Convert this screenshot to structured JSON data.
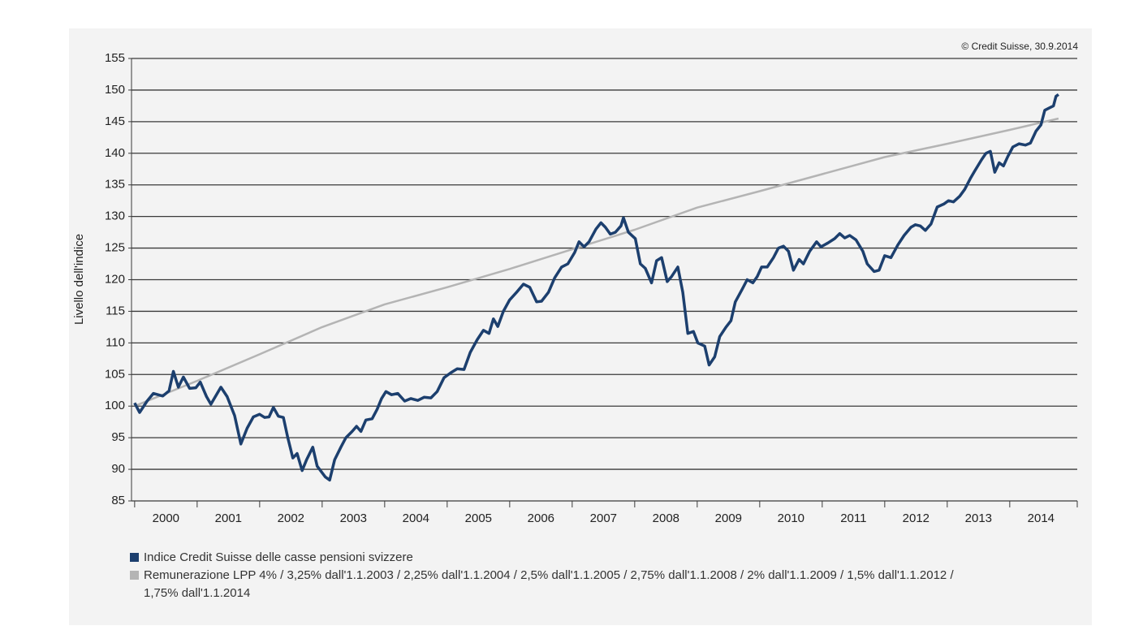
{
  "chart_data": {
    "type": "line",
    "source": "© Credit Suisse, 30.9.2014",
    "y_label": "Livello dell'indice",
    "xlim": [
      1999.95,
      2015.08
    ],
    "xticks": [
      2000,
      2001,
      2002,
      2003,
      2004,
      2005,
      2006,
      2007,
      2008,
      2009,
      2010,
      2011,
      2012,
      2013,
      2014
    ],
    "ylim": [
      85,
      155
    ],
    "yticks": [
      85,
      90,
      95,
      100,
      105,
      110,
      115,
      120,
      125,
      130,
      135,
      140,
      145,
      150,
      155
    ],
    "grid": true,
    "series": [
      {
        "name": "Indice Credit Suisse delle casse pensioni svizzere",
        "color": "#1c3f6e",
        "x": [
          2000.0,
          2000.08,
          2000.2,
          2000.3,
          2000.45,
          2000.55,
          2000.62,
          2000.7,
          2000.78,
          2000.88,
          2000.98,
          2001.05,
          2001.15,
          2001.22,
          2001.38,
          2001.48,
          2001.6,
          2001.7,
          2001.8,
          2001.9,
          2002.0,
          2002.08,
          2002.15,
          2002.22,
          2002.3,
          2002.38,
          2002.45,
          2002.53,
          2002.6,
          2002.68,
          2002.75,
          2002.85,
          2002.92,
          2003.05,
          2003.12,
          2003.2,
          2003.3,
          2003.38,
          2003.48,
          2003.55,
          2003.62,
          2003.7,
          2003.8,
          2003.88,
          2003.95,
          2004.02,
          2004.11,
          2004.21,
          2004.32,
          2004.42,
          2004.53,
          2004.63,
          2004.74,
          2004.84,
          2004.95,
          2005.06,
          2005.16,
          2005.27,
          2005.37,
          2005.48,
          2005.58,
          2005.67,
          2005.74,
          2005.81,
          2005.9,
          2006.0,
          2006.11,
          2006.22,
          2006.32,
          2006.43,
          2006.51,
          2006.62,
          2006.72,
          2006.83,
          2006.93,
          2007.04,
          2007.11,
          2007.19,
          2007.27,
          2007.38,
          2007.46,
          2007.53,
          2007.61,
          2007.69,
          2007.78,
          2007.82,
          2007.9,
          2008.01,
          2008.09,
          2008.17,
          2008.27,
          2008.35,
          2008.43,
          2008.52,
          2008.59,
          2008.69,
          2008.77,
          2008.85,
          2008.94,
          2009.01,
          2009.12,
          2009.19,
          2009.28,
          2009.36,
          2009.46,
          2009.54,
          2009.61,
          2009.72,
          2009.8,
          2009.89,
          2009.96,
          2010.03,
          2010.12,
          2010.22,
          2010.3,
          2010.38,
          2010.46,
          2010.54,
          2010.63,
          2010.7,
          2010.8,
          2010.91,
          2010.98,
          2011.09,
          2011.2,
          2011.28,
          2011.36,
          2011.44,
          2011.54,
          2011.65,
          2011.72,
          2011.83,
          2011.91,
          2012.0,
          2012.1,
          2012.21,
          2012.31,
          2012.42,
          2012.49,
          2012.57,
          2012.65,
          2012.74,
          2012.84,
          2012.95,
          2013.02,
          2013.1,
          2013.2,
          2013.28,
          2013.37,
          2013.44,
          2013.55,
          2013.62,
          2013.69,
          2013.76,
          2013.83,
          2013.9,
          2013.97,
          2014.05,
          2014.15,
          2014.25,
          2014.33,
          2014.42,
          2014.5,
          2014.56,
          2014.64,
          2014.7,
          2014.74,
          2014.78
        ],
        "values": [
          100.5,
          99,
          100.8,
          102,
          101.6,
          102.4,
          105.5,
          103,
          104.6,
          102.8,
          102.9,
          103.8,
          101.5,
          100.3,
          103,
          101.5,
          98.5,
          94,
          96.5,
          98.3,
          98.7,
          98.2,
          98.3,
          99.8,
          98.4,
          98.2,
          95,
          91.8,
          92.5,
          89.8,
          91.5,
          93.5,
          90.5,
          88.8,
          88.3,
          91.5,
          93.5,
          95,
          96,
          96.8,
          96,
          97.8,
          98,
          99.5,
          101.2,
          102.3,
          101.8,
          102,
          100.8,
          101.2,
          100.9,
          101.4,
          101.3,
          102.3,
          104.5,
          105.3,
          105.9,
          105.8,
          108.5,
          110.5,
          112,
          111.5,
          113.8,
          112.6,
          115,
          116.8,
          118,
          119.3,
          118.8,
          116.5,
          116.6,
          118,
          120.3,
          122,
          122.5,
          124.3,
          126,
          125.2,
          126,
          128,
          129,
          128.3,
          127.2,
          127.5,
          128.5,
          129.8,
          127.5,
          126.5,
          122.5,
          121.8,
          119.5,
          123,
          123.5,
          119.7,
          120.5,
          122,
          118,
          111.5,
          111.8,
          110,
          109.5,
          106.5,
          107.8,
          111,
          112.5,
          113.5,
          116.5,
          118.5,
          120,
          119.5,
          120.5,
          122,
          122,
          123.5,
          125,
          125.3,
          124.5,
          121.5,
          123.2,
          122.5,
          124.5,
          126,
          125.2,
          125.8,
          126.5,
          127.3,
          126.6,
          127,
          126.3,
          124.5,
          122.5,
          121.3,
          121.5,
          123.8,
          123.5,
          125.5,
          127,
          128.3,
          128.7,
          128.5,
          127.8,
          128.8,
          131.5,
          132,
          132.5,
          132.3,
          133.2,
          134.3,
          136,
          137.2,
          139,
          140,
          140.3,
          137,
          138.5,
          138,
          139.5,
          141,
          141.5,
          141.3,
          141.6,
          143.5,
          144.5,
          146.8,
          147.2,
          147.5,
          149,
          149.3
        ]
      },
      {
        "name": "Remunerazione LPP 4% / 3,25% dall'1.1.2003 / 2,25% dall'1.1.2004 / 2,5% dall'1.1.2005 / 2,75% dall'1.1.2008 / 2% dall'1.1.2009 / 1,5% dall'1.1.2012 / 1,75% dall'1.1.2014",
        "color": "#b4b4b4",
        "x": [
          2000,
          2001,
          2002,
          2003,
          2004,
          2005,
          2006,
          2007,
          2008,
          2009,
          2010,
          2011,
          2012,
          2013,
          2014,
          2014.78
        ],
        "values": [
          100,
          104,
          108.2,
          112.5,
          116.1,
          118.8,
          121.7,
          124.8,
          127.9,
          131.4,
          134,
          136.7,
          139.4,
          141.5,
          143.7,
          145.5
        ]
      }
    ]
  }
}
